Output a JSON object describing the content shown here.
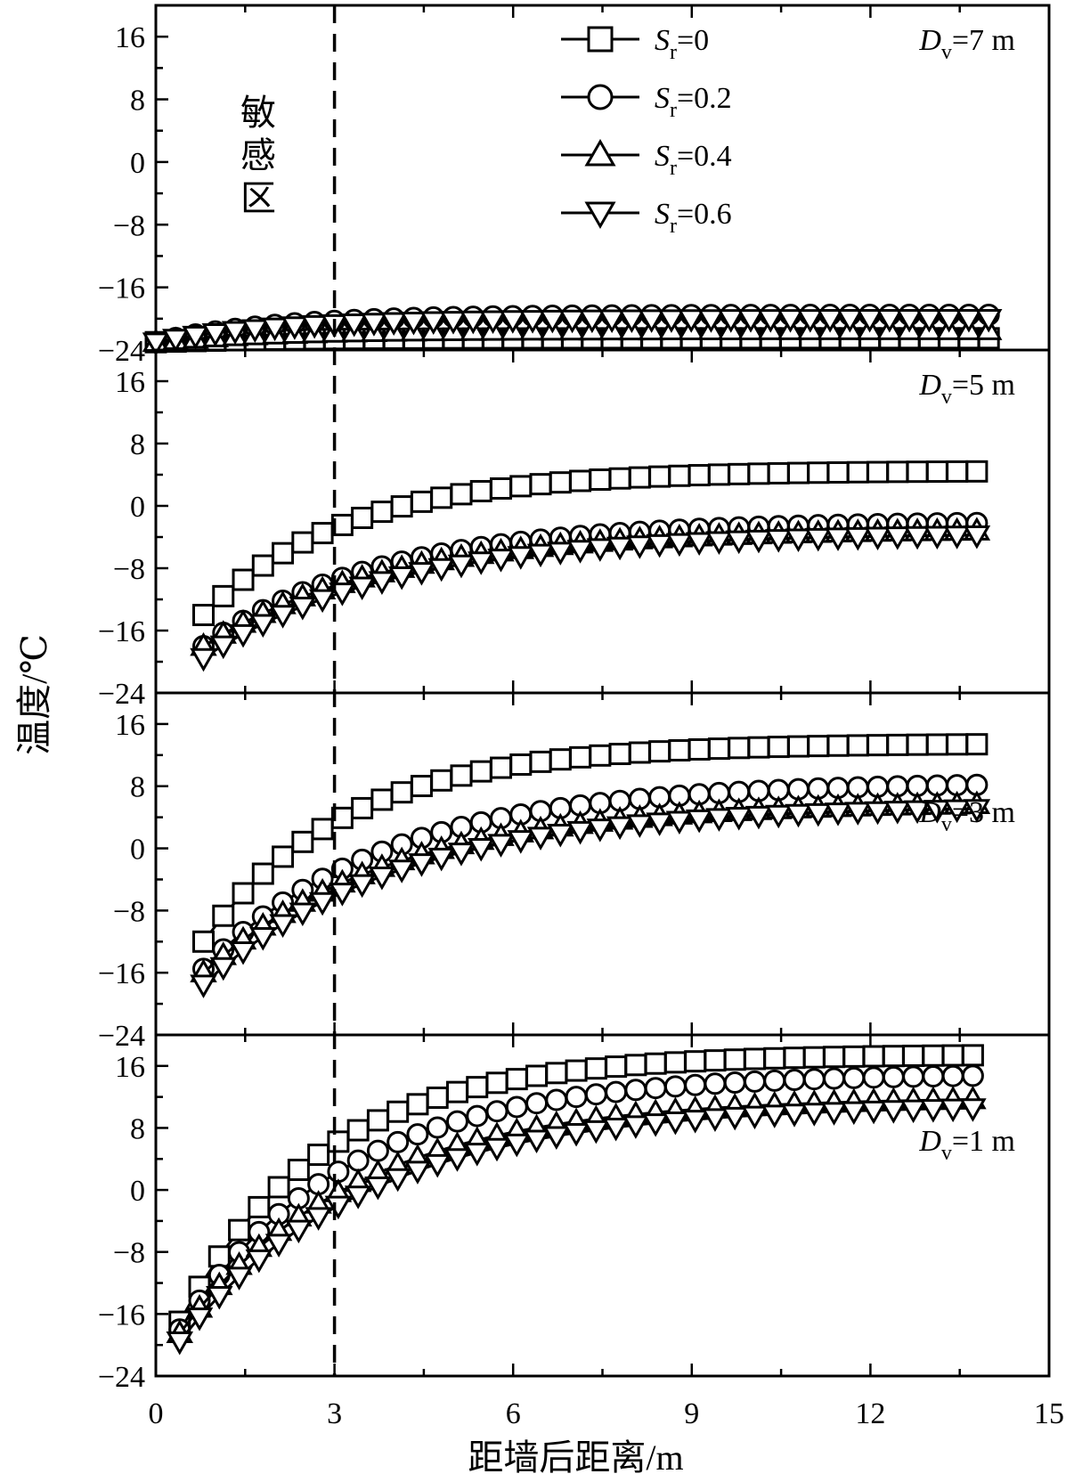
{
  "chart_data": {
    "type": "line",
    "xlabel": "距墙后距离/m",
    "ylabel": "温度/℃",
    "xlim": [
      0,
      15
    ],
    "ylim": [
      -24,
      20
    ],
    "xticks": [
      "0",
      "3",
      "6",
      "9",
      "12",
      "15"
    ],
    "yticks": [
      "16",
      "8",
      "0",
      "−8",
      "−16",
      "−24"
    ],
    "annotation": "敏感区",
    "sensitive_boundary_x": 3,
    "legend_position": "top-center",
    "legend": [
      {
        "symbol": "S",
        "sub": "r",
        "value": "=0",
        "marker": "square"
      },
      {
        "symbol": "S",
        "sub": "r",
        "value": "=0.2",
        "marker": "circle"
      },
      {
        "symbol": "S",
        "sub": "r",
        "value": "=0.4",
        "marker": "triangle-up"
      },
      {
        "symbol": "S",
        "sub": "r",
        "value": "=0.6",
        "marker": "triangle-down"
      }
    ],
    "panels": [
      {
        "label": {
          "symbol": "D",
          "sub": "v",
          "value": "=7 m"
        },
        "label_position": "top-right",
        "series": [
          {
            "marker": "square",
            "T0": -23,
            "Tinf": -22.5,
            "k": 0.5,
            "x0": 0.0
          },
          {
            "marker": "circle",
            "T0": -23,
            "Tinf": -19.5,
            "k": 0.5,
            "x0": 0.0
          },
          {
            "marker": "triangle-up",
            "T0": -23,
            "Tinf": -21.5,
            "k": 0.5,
            "x0": 0.0
          },
          {
            "marker": "triangle-down",
            "T0": -23,
            "Tinf": -20.0,
            "k": 0.5,
            "x0": 0.0
          }
        ]
      },
      {
        "label": {
          "symbol": "D",
          "sub": "v",
          "value": "=5 m"
        },
        "label_position": "top-right",
        "series": [
          {
            "marker": "square",
            "T0": -14,
            "Tinf": 4.5,
            "k": 0.42,
            "x0": 0.8
          },
          {
            "marker": "circle",
            "T0": -18,
            "Tinf": -2.0,
            "k": 0.34,
            "x0": 0.8
          },
          {
            "marker": "triangle-up",
            "T0": -18,
            "Tinf": -3.0,
            "k": 0.33,
            "x0": 0.8
          },
          {
            "marker": "triangle-down",
            "T0": -19.5,
            "Tinf": -3.5,
            "k": 0.32,
            "x0": 0.8
          }
        ]
      },
      {
        "label": {
          "symbol": "D",
          "sub": "v",
          "value": "=3 m"
        },
        "label_position": "middle-right",
        "series": [
          {
            "marker": "square",
            "T0": -12,
            "Tinf": 13.5,
            "k": 0.42,
            "x0": 0.8
          },
          {
            "marker": "circle",
            "T0": -15.5,
            "Tinf": 8.5,
            "k": 0.33,
            "x0": 0.8
          },
          {
            "marker": "triangle-up",
            "T0": -16,
            "Tinf": 6.0,
            "k": 0.32,
            "x0": 0.8
          },
          {
            "marker": "triangle-down",
            "T0": -17.5,
            "Tinf": 5.5,
            "k": 0.31,
            "x0": 0.8
          }
        ]
      },
      {
        "label": {
          "symbol": "D",
          "sub": "v",
          "value": "=1 m"
        },
        "label_position": "middle-right",
        "series": [
          {
            "marker": "square",
            "T0": -17,
            "Tinf": 17.5,
            "k": 0.42,
            "x0": 0.4
          },
          {
            "marker": "circle",
            "T0": -18,
            "Tinf": 15.0,
            "k": 0.36,
            "x0": 0.4
          },
          {
            "marker": "triangle-up",
            "T0": -18.5,
            "Tinf": 12.0,
            "k": 0.34,
            "x0": 0.4
          },
          {
            "marker": "triangle-down",
            "T0": -19.5,
            "Tinf": 11.0,
            "k": 0.32,
            "x0": 0.4
          }
        ]
      }
    ],
    "x_sample_step": 0.333
  }
}
